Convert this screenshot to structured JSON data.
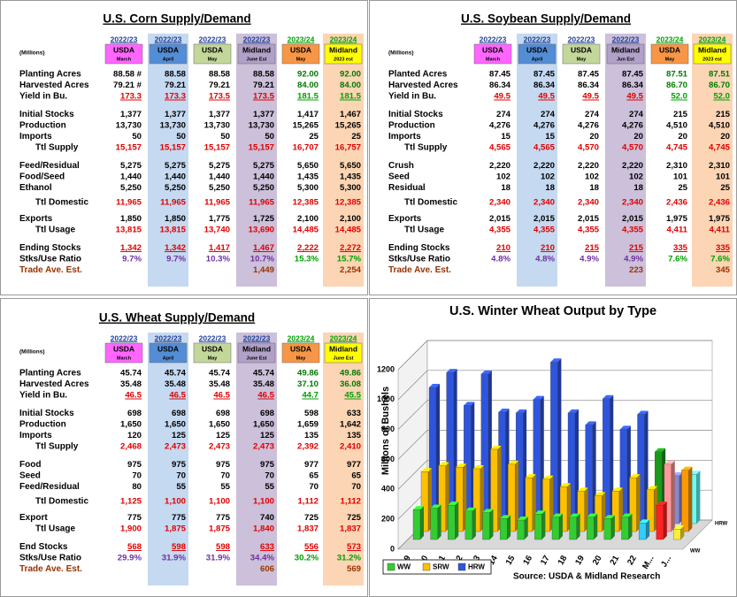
{
  "corn": {
    "title": "U.S. Corn Supply/Demand",
    "units": "(Millions)",
    "columns": [
      {
        "year": "2022/23",
        "source": "USDA",
        "period": "March"
      },
      {
        "year": "2022/23",
        "source": "USDA",
        "period": "April"
      },
      {
        "year": "2022/23",
        "source": "USDA",
        "period": "May"
      },
      {
        "year": "2022/23",
        "source": "Midland",
        "period": "June Est"
      },
      {
        "year": "2023/24",
        "source": "USDA",
        "period": "May"
      },
      {
        "year": "2023/24",
        "source": "Midland",
        "period": "2023 est"
      }
    ],
    "rows": [
      {
        "label": "Planting Acres",
        "values": [
          "88.58 #",
          "88.58",
          "88.58",
          "88.58",
          "92.00",
          "92.00"
        ]
      },
      {
        "label": "Harvested Acres",
        "values": [
          "79.21 #",
          "79.21",
          "79.21",
          "79.21",
          "84.00",
          "84.00"
        ]
      },
      {
        "label": "Yield in Bu.",
        "values": [
          "173.3",
          "173.3",
          "173.5",
          "173.5",
          "181.5",
          "181.5"
        ]
      },
      {
        "label": "Initial Stocks",
        "values": [
          "1,377",
          "1,377",
          "1,377",
          "1,377",
          "1,417",
          "1,467"
        ]
      },
      {
        "label": "Production",
        "values": [
          "13,730",
          "13,730",
          "13,730",
          "13,730",
          "15,265",
          "15,265"
        ]
      },
      {
        "label": "Imports",
        "values": [
          "50",
          "50",
          "50",
          "50",
          "25",
          "25"
        ]
      },
      {
        "label": "Ttl Supply",
        "values": [
          "15,157",
          "15,157",
          "15,157",
          "15,157",
          "16,707",
          "16,757"
        ]
      },
      {
        "label": "Feed/Residual",
        "values": [
          "5,275",
          "5,275",
          "5,275",
          "5,275",
          "5,650",
          "5,650"
        ]
      },
      {
        "label": "Food/Seed",
        "values": [
          "1,440",
          "1,440",
          "1,440",
          "1,440",
          "1,435",
          "1,435"
        ]
      },
      {
        "label": "Ethanol",
        "values": [
          "5,250",
          "5,250",
          "5,250",
          "5,250",
          "5,300",
          "5,300"
        ]
      },
      {
        "label": "Ttl Domestic",
        "values": [
          "11,965",
          "11,965",
          "11,965",
          "11,965",
          "12,385",
          "12,385"
        ]
      },
      {
        "label": "Exports",
        "values": [
          "1,850",
          "1,850",
          "1,775",
          "1,725",
          "2,100",
          "2,100"
        ]
      },
      {
        "label": "Ttl Usage",
        "values": [
          "13,815",
          "13,815",
          "13,740",
          "13,690",
          "14,485",
          "14,485"
        ]
      },
      {
        "label": "Ending Stocks",
        "values": [
          "1,342",
          "1,342",
          "1,417",
          "1,467",
          "2,222",
          "2,272"
        ]
      },
      {
        "label": "Stks/Use Ratio",
        "values": [
          "9.7%",
          "9.7%",
          "10.3%",
          "10.7%",
          "15.3%",
          "15.7%"
        ]
      },
      {
        "label": "Trade Ave. Est.",
        "values": [
          null,
          null,
          null,
          "1,449",
          null,
          "2,254"
        ]
      }
    ]
  },
  "soybean": {
    "title": "U.S. Soybean Supply/Demand",
    "units": "(Millions)",
    "columns": [
      {
        "year": "2022/23",
        "source": "USDA",
        "period": "March"
      },
      {
        "year": "2022/23",
        "source": "USDA",
        "period": "April"
      },
      {
        "year": "2022/23",
        "source": "USDA",
        "period": "May"
      },
      {
        "year": "2022/23",
        "source": "Midland",
        "period": "Jun Est"
      },
      {
        "year": "2023/24",
        "source": "USDA",
        "period": "May"
      },
      {
        "year": "2023/24",
        "source": "Midland",
        "period": "2023 est"
      }
    ],
    "rows": [
      {
        "label": "Planted Acres",
        "values": [
          "87.45",
          "87.45",
          "87.45",
          "87.45",
          "87.51",
          "87.51"
        ]
      },
      {
        "label": "Harvested Acres",
        "values": [
          "86.34",
          "86.34",
          "86.34",
          "86.34",
          "86.70",
          "86.70"
        ]
      },
      {
        "label": "Yield in Bu.",
        "values": [
          "49.5",
          "49.5",
          "49.5",
          "49.5",
          "52.0",
          "52.0"
        ]
      },
      {
        "label": "Initial Stocks",
        "values": [
          "274",
          "274",
          "274",
          "274",
          "215",
          "215"
        ]
      },
      {
        "label": "Production",
        "values": [
          "4,276",
          "4,276",
          "4,276",
          "4,276",
          "4,510",
          "4,510"
        ]
      },
      {
        "label": "Imports",
        "values": [
          "15",
          "15",
          "20",
          "20",
          "20",
          "20"
        ]
      },
      {
        "label": "Ttl Supply",
        "values": [
          "4,565",
          "4,565",
          "4,570",
          "4,570",
          "4,745",
          "4,745"
        ]
      },
      {
        "label": "Crush",
        "values": [
          "2,220",
          "2,220",
          "2,220",
          "2,220",
          "2,310",
          "2,310"
        ]
      },
      {
        "label": "Seed",
        "values": [
          "102",
          "102",
          "102",
          "102",
          "101",
          "101"
        ]
      },
      {
        "label": "Residual",
        "values": [
          "18",
          "18",
          "18",
          "18",
          "25",
          "25"
        ]
      },
      {
        "label": "Ttl Domestic",
        "values": [
          "2,340",
          "2,340",
          "2,340",
          "2,340",
          "2,436",
          "2,436"
        ]
      },
      {
        "label": "Exports",
        "values": [
          "2,015",
          "2,015",
          "2,015",
          "2,015",
          "1,975",
          "1,975"
        ]
      },
      {
        "label": "Ttl Usage",
        "values": [
          "4,355",
          "4,355",
          "4,355",
          "4,355",
          "4,411",
          "4,411"
        ]
      },
      {
        "label": "Ending Stocks",
        "values": [
          "210",
          "210",
          "215",
          "215",
          "335",
          "335"
        ]
      },
      {
        "label": "Stks/Use Ratio",
        "values": [
          "4.8%",
          "4.8%",
          "4.9%",
          "4.9%",
          "7.6%",
          "7.6%"
        ]
      },
      {
        "label": "Trade Ave. Est.",
        "values": [
          null,
          null,
          null,
          "223",
          null,
          "345"
        ]
      }
    ]
  },
  "wheat": {
    "title": "U.S. Wheat Supply/Demand",
    "units": "(Millions)",
    "columns": [
      {
        "year": "2022/23",
        "source": "USDA",
        "period": "March"
      },
      {
        "year": "2022/23",
        "source": "USDA",
        "period": "April"
      },
      {
        "year": "2022/23",
        "source": "USDA",
        "period": "May"
      },
      {
        "year": "2022/23",
        "source": "Midland",
        "period": "June Est"
      },
      {
        "year": "2023/24",
        "source": "USDA",
        "period": "May"
      },
      {
        "year": "2023/24",
        "source": "Midland",
        "period": "June Est"
      }
    ],
    "rows": [
      {
        "label": "Planting Acres",
        "values": [
          "45.74",
          "45.74",
          "45.74",
          "45.74",
          "49.86",
          "49.86"
        ]
      },
      {
        "label": "Harvested Acres",
        "values": [
          "35.48",
          "35.48",
          "35.48",
          "35.48",
          "37.10",
          "36.08"
        ]
      },
      {
        "label": "Yield in Bu.",
        "values": [
          "46.5",
          "46.5",
          "46.5",
          "46.5",
          "44.7",
          "45.5"
        ]
      },
      {
        "label": "Initial Stocks",
        "values": [
          "698",
          "698",
          "698",
          "698",
          "598",
          "633"
        ]
      },
      {
        "label": "Production",
        "values": [
          "1,650",
          "1,650",
          "1,650",
          "1,650",
          "1,659",
          "1,642"
        ]
      },
      {
        "label": "Imports",
        "values": [
          "120",
          "125",
          "125",
          "125",
          "135",
          "135"
        ]
      },
      {
        "label": "Ttl Supply",
        "values": [
          "2,468",
          "2,473",
          "2,473",
          "2,473",
          "2,392",
          "2,410"
        ]
      },
      {
        "label": "Food",
        "values": [
          "975",
          "975",
          "975",
          "975",
          "977",
          "977"
        ]
      },
      {
        "label": "Seed",
        "values": [
          "70",
          "70",
          "70",
          "70",
          "65",
          "65"
        ]
      },
      {
        "label": "Feed/Residual",
        "values": [
          "80",
          "55",
          "55",
          "55",
          "70",
          "70"
        ]
      },
      {
        "label": "Ttl Domestic",
        "values": [
          "1,125",
          "1,100",
          "1,100",
          "1,100",
          "1,112",
          "1,112"
        ]
      },
      {
        "label": "Export",
        "values": [
          "775",
          "775",
          "775",
          "740",
          "725",
          "725"
        ]
      },
      {
        "label": "Ttl Usage",
        "values": [
          "1,900",
          "1,875",
          "1,875",
          "1,840",
          "1,837",
          "1,837"
        ]
      },
      {
        "label": "End Stocks",
        "values": [
          "568",
          "598",
          "598",
          "633",
          "556",
          "573"
        ]
      },
      {
        "label": "Stks/Use Ratio",
        "values": [
          "29.9%",
          "31.9%",
          "31.9%",
          "34.4%",
          "30.2%",
          "31.2%"
        ]
      },
      {
        "label": "Trade Ave. Est.",
        "values": [
          null,
          null,
          null,
          "606",
          null,
          "569"
        ]
      }
    ]
  },
  "chart_data": {
    "type": "bar",
    "title": "U.S. Winter Wheat Output by Type",
    "y_label": "Millions of Bushels",
    "source": "Source: USDA & Midland Research",
    "categories": [
      "09",
      "10",
      "11",
      "12",
      "13",
      "14",
      "15",
      "16",
      "17",
      "18",
      "19",
      "20",
      "21",
      "22",
      "M...",
      "J..."
    ],
    "series": [
      {
        "name": "WW",
        "color": "#33cc33",
        "colors": [
          "#33cc33",
          "#33cc33",
          "#33cc33",
          "#33cc33",
          "#33cc33",
          "#33cc33",
          "#33cc33",
          "#33cc33",
          "#33cc33",
          "#33cc33",
          "#33cc33",
          "#33cc33",
          "#33cc33",
          "#33ccff",
          "#ff2222",
          "#ffee33"
        ],
        "values": [
          200,
          210,
          230,
          190,
          180,
          140,
          130,
          170,
          150,
          150,
          150,
          140,
          150,
          110,
          230,
          70
        ]
      },
      {
        "name": "SRW",
        "color": "#ffc000",
        "colors": [
          "#ffc000",
          "#ffc000",
          "#ffc000",
          "#ffc000",
          "#ffc000",
          "#ffc000",
          "#ffc000",
          "#ffc000",
          "#ffc000",
          "#ffc000",
          "#ffc000",
          "#ffc000",
          "#ffc000",
          "#ffc000",
          "#ff9999",
          "#ff9900"
        ],
        "values": [
          400,
          440,
          430,
          420,
          550,
          450,
          360,
          350,
          300,
          270,
          240,
          270,
          360,
          280,
          450,
          410
        ]
      },
      {
        "name": "HRW",
        "color": "#2f55dd",
        "colors": [
          "#2f55dd",
          "#2f55dd",
          "#2f55dd",
          "#2f55dd",
          "#2f55dd",
          "#2f55dd",
          "#2f55dd",
          "#2f55dd",
          "#2f55dd",
          "#2f55dd",
          "#2f55dd",
          "#2f55dd",
          "#2f55dd",
          "#1a9a1a",
          "#8888cc",
          "#66ffff"
        ],
        "values": [
          910,
          1010,
          790,
          1000,
          745,
          740,
          830,
          1080,
          740,
          660,
          835,
          630,
          730,
          480,
          320,
          330
        ]
      }
    ],
    "ylim": [
      0,
      1200
    ],
    "yticks": [
      0,
      200,
      400,
      600,
      800,
      1000,
      1200
    ],
    "grid": true,
    "legend": "bottom-left"
  }
}
